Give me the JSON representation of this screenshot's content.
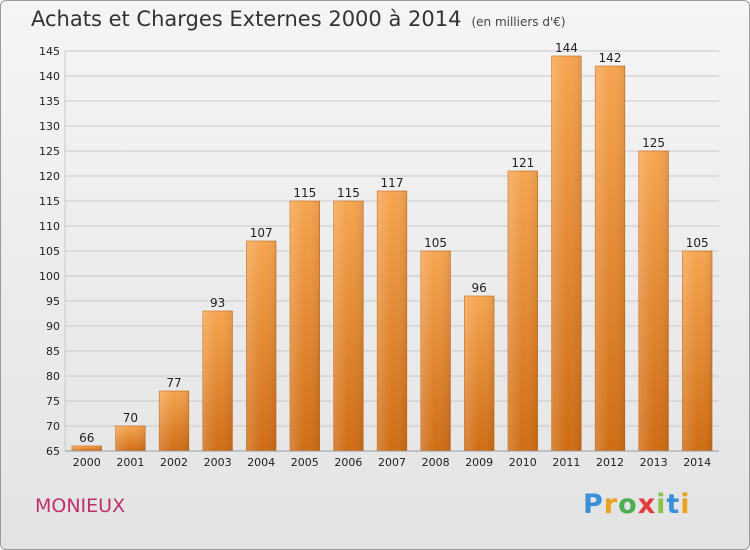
{
  "title": "Achats et Charges Externes 2000 à 2014",
  "subtitle": "(en milliers d'€)",
  "commune": "MONIEUX",
  "logo": {
    "text": "Proxiti",
    "letters": [
      "P",
      "r",
      "o",
      "x",
      "i",
      "t",
      "i"
    ],
    "colors": [
      "#3a8fd6",
      "#e8a21b",
      "#4caf50",
      "#e33b3b",
      "#8bc34a",
      "#3a8fd6",
      "#e8a21b"
    ]
  },
  "colors": {
    "bar_top": "#f6a550",
    "bar_bottom": "#cf6c14",
    "grid": "#c9c9c9",
    "axis_text": "#222222",
    "title_accent": "#c0306f"
  },
  "chart_data": {
    "type": "bar",
    "title": "Achats et Charges Externes 2000 à 2014",
    "categories": [
      "2000",
      "2001",
      "2002",
      "2003",
      "2004",
      "2005",
      "2006",
      "2007",
      "2008",
      "2009",
      "2010",
      "2011",
      "2012",
      "2013",
      "2014"
    ],
    "values": [
      66,
      70,
      77,
      93,
      107,
      115,
      115,
      117,
      105,
      96,
      121,
      144,
      142,
      125,
      105
    ],
    "ylim": [
      65,
      145
    ],
    "yticks": [
      65,
      70,
      75,
      80,
      85,
      90,
      95,
      100,
      105,
      110,
      115,
      120,
      125,
      130,
      135,
      140,
      145
    ],
    "grid": true,
    "xlabel": "",
    "ylabel": ""
  }
}
